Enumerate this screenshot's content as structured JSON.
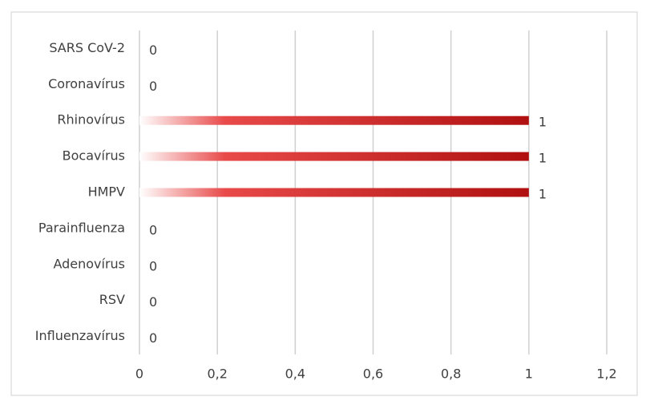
{
  "chart_data": {
    "type": "bar",
    "orientation": "horizontal",
    "categories": [
      "SARS CoV-2",
      "Coronavírus",
      "Rhinovírus",
      "Bocavírus",
      "HMPV",
      "Parainfluenza",
      "Adenovírus",
      "RSV",
      "Influenzavírus"
    ],
    "values": [
      0,
      0,
      1,
      1,
      1,
      0,
      0,
      0,
      0
    ],
    "color": "#b01010",
    "xlim": [
      0,
      1.2
    ],
    "xticks": [
      0,
      {
        "value": 0.2,
        "label": "0,2"
      },
      {
        "value": 0.4,
        "label": "0,4"
      },
      {
        "value": 0.6,
        "label": "0,6"
      },
      {
        "value": 0.8,
        "label": "0,8"
      },
      1,
      {
        "value": 1.2,
        "label": "1,2"
      }
    ],
    "grid": true
  }
}
